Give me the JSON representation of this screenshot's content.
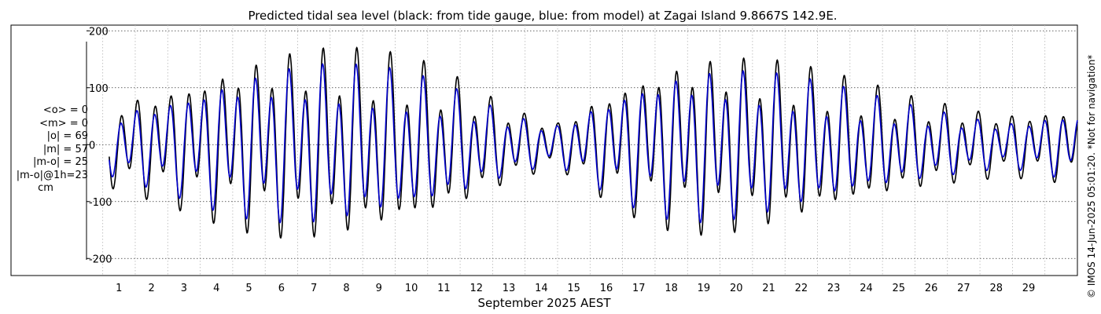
{
  "chart_data": {
    "type": "line",
    "title": "Predicted tidal sea level (black: from tide gauge, blue: from model) at Zagai Island 9.8667S 142.9E.",
    "xlabel": "September 2025 AEST",
    "ylabel": "",
    "x_range_days": [
      -0.5,
      30.0
    ],
    "ylim": [
      -230,
      210
    ],
    "x_ticks": [
      "1",
      "2",
      "3",
      "4",
      "5",
      "6",
      "7",
      "8",
      "9",
      "10",
      "11",
      "12",
      "13",
      "14",
      "15",
      "16",
      "17",
      "18",
      "19",
      "20",
      "21",
      "22",
      "23",
      "24",
      "25",
      "26",
      "27",
      "28",
      "29"
    ],
    "y_ticks": [
      200,
      100,
      0,
      -100,
      -200
    ],
    "y_tick_labels": [
      "200",
      "100",
      "0",
      "-100",
      "-200"
    ],
    "grid": true,
    "series": [
      {
        "name": "tide gauge",
        "color": "#000000",
        "start_day": 0.2,
        "end_day": 30.0,
        "daily_range": [
          [
            0,
            70
          ],
          [
            1,
            85
          ],
          [
            2,
            100
          ],
          [
            3,
            120
          ],
          [
            4,
            140
          ],
          [
            5,
            155
          ],
          [
            6,
            165
          ],
          [
            7,
            165
          ],
          [
            8,
            160
          ],
          [
            9,
            150
          ],
          [
            10,
            135
          ],
          [
            11,
            110
          ],
          [
            12,
            80
          ],
          [
            13,
            55
          ],
          [
            14,
            40
          ],
          [
            15,
            75
          ],
          [
            16,
            110
          ],
          [
            17,
            135
          ],
          [
            18,
            150
          ],
          [
            19,
            155
          ],
          [
            20,
            150
          ],
          [
            21,
            140
          ],
          [
            22,
            125
          ],
          [
            23,
            110
          ],
          [
            24,
            95
          ],
          [
            25,
            80
          ],
          [
            26,
            70
          ],
          [
            27,
            60
          ],
          [
            28,
            55
          ],
          [
            29,
            60
          ],
          [
            30,
            65
          ]
        ]
      },
      {
        "name": "model",
        "color": "#0000cc",
        "start_day": 0.2,
        "end_day": 30.0,
        "daily_range": [
          [
            0,
            50
          ],
          [
            1,
            65
          ],
          [
            2,
            80
          ],
          [
            3,
            100
          ],
          [
            4,
            118
          ],
          [
            5,
            130
          ],
          [
            6,
            138
          ],
          [
            7,
            138
          ],
          [
            8,
            132
          ],
          [
            9,
            124
          ],
          [
            10,
            110
          ],
          [
            11,
            90
          ],
          [
            12,
            65
          ],
          [
            13,
            45
          ],
          [
            14,
            35
          ],
          [
            15,
            65
          ],
          [
            16,
            95
          ],
          [
            17,
            118
          ],
          [
            18,
            130
          ],
          [
            19,
            132
          ],
          [
            20,
            128
          ],
          [
            21,
            118
          ],
          [
            22,
            105
          ],
          [
            23,
            92
          ],
          [
            24,
            78
          ],
          [
            25,
            65
          ],
          [
            26,
            55
          ],
          [
            27,
            45
          ],
          [
            28,
            40
          ],
          [
            29,
            50
          ],
          [
            30,
            60
          ]
        ]
      }
    ]
  },
  "stats": {
    "mean_obs": "<o> = 0",
    "mean_model": "<m> = 0",
    "abs_obs": "|o| = 69",
    "abs_model": "|m| = 57",
    "abs_diff": "|m-o| = 25",
    "abs_diff_1h": "|m-o|@1h=23",
    "unit": "cm"
  },
  "credit": "© IMOS 14-Jun-2025 05:01:20. *Not for navigation*"
}
